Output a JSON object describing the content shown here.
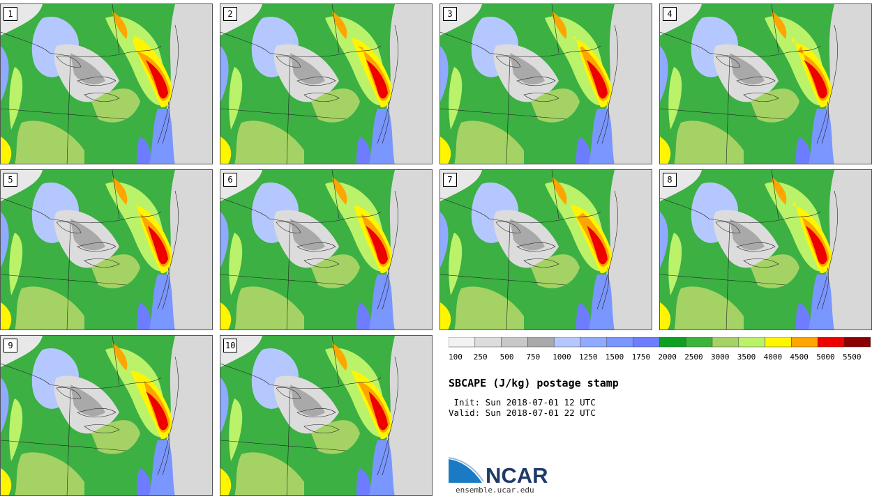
{
  "panels": [
    {
      "label": "1"
    },
    {
      "label": "2"
    },
    {
      "label": "3"
    },
    {
      "label": "4"
    },
    {
      "label": "5"
    },
    {
      "label": "6"
    },
    {
      "label": "7"
    },
    {
      "label": "8"
    },
    {
      "label": "9"
    },
    {
      "label": "10"
    }
  ],
  "colorbar": {
    "tick_labels": [
      "100",
      "250",
      "500",
      "750",
      "1000",
      "1250",
      "1500",
      "1750",
      "2000",
      "2500",
      "3000",
      "3500",
      "4000",
      "4500",
      "5000",
      "5500"
    ],
    "colors": [
      "#f2f2f2",
      "#dcdcdc",
      "#c8c8c8",
      "#a9a9a9",
      "#b4c8ff",
      "#8faaff",
      "#7a96ff",
      "#6e7dff",
      "#0ea021",
      "#3ab53a",
      "#a5d264",
      "#baf26a",
      "#fff500",
      "#ffa500",
      "#ee0000",
      "#8b0000"
    ]
  },
  "title": "SBCAPE (J/kg) postage stamp",
  "init": " Init: Sun 2018-07-01 12 UTC",
  "valid": "Valid: Sun 2018-07-01 22 UTC",
  "logo": {
    "text": "NCAR",
    "color": "#1f3a68",
    "accent": "#1a7ac4"
  },
  "site": "ensemble.ucar.edu"
}
